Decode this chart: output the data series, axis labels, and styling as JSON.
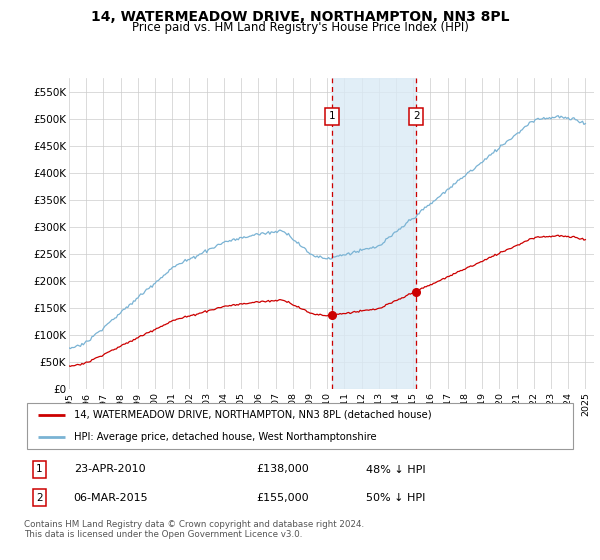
{
  "title": "14, WATERMEADOW DRIVE, NORTHAMPTON, NN3 8PL",
  "subtitle": "Price paid vs. HM Land Registry's House Price Index (HPI)",
  "title_fontsize": 10,
  "subtitle_fontsize": 8.5,
  "ylabel_ticks": [
    "£0",
    "£50K",
    "£100K",
    "£150K",
    "£200K",
    "£250K",
    "£300K",
    "£350K",
    "£400K",
    "£450K",
    "£500K",
    "£550K"
  ],
  "ytick_values": [
    0,
    50000,
    100000,
    150000,
    200000,
    250000,
    300000,
    350000,
    400000,
    450000,
    500000,
    550000
  ],
  "ylim": [
    0,
    575000
  ],
  "xlim_start": 1995.0,
  "xlim_end": 2025.5,
  "xtick_years": [
    1995,
    1996,
    1997,
    1998,
    1999,
    2000,
    2001,
    2002,
    2003,
    2004,
    2005,
    2006,
    2007,
    2008,
    2009,
    2010,
    2011,
    2012,
    2013,
    2014,
    2015,
    2016,
    2017,
    2018,
    2019,
    2020,
    2021,
    2022,
    2023,
    2024,
    2025
  ],
  "hpi_color": "#7ab3d4",
  "price_color": "#cc0000",
  "transaction1_x": 2010.3,
  "transaction2_x": 2015.17,
  "transaction1_label": "1",
  "transaction2_label": "2",
  "transaction1_price": 138000,
  "transaction2_price": 155000,
  "shade_color": "#daeaf5",
  "legend_line1": "14, WATERMEADOW DRIVE, NORTHAMPTON, NN3 8PL (detached house)",
  "legend_line2": "HPI: Average price, detached house, West Northamptonshire",
  "table_row1": [
    "1",
    "23-APR-2010",
    "£138,000",
    "48% ↓ HPI"
  ],
  "table_row2": [
    "2",
    "06-MAR-2015",
    "£155,000",
    "50% ↓ HPI"
  ],
  "footer": "Contains HM Land Registry data © Crown copyright and database right 2024.\nThis data is licensed under the Open Government Licence v3.0.",
  "background_color": "#ffffff",
  "grid_color": "#cccccc"
}
